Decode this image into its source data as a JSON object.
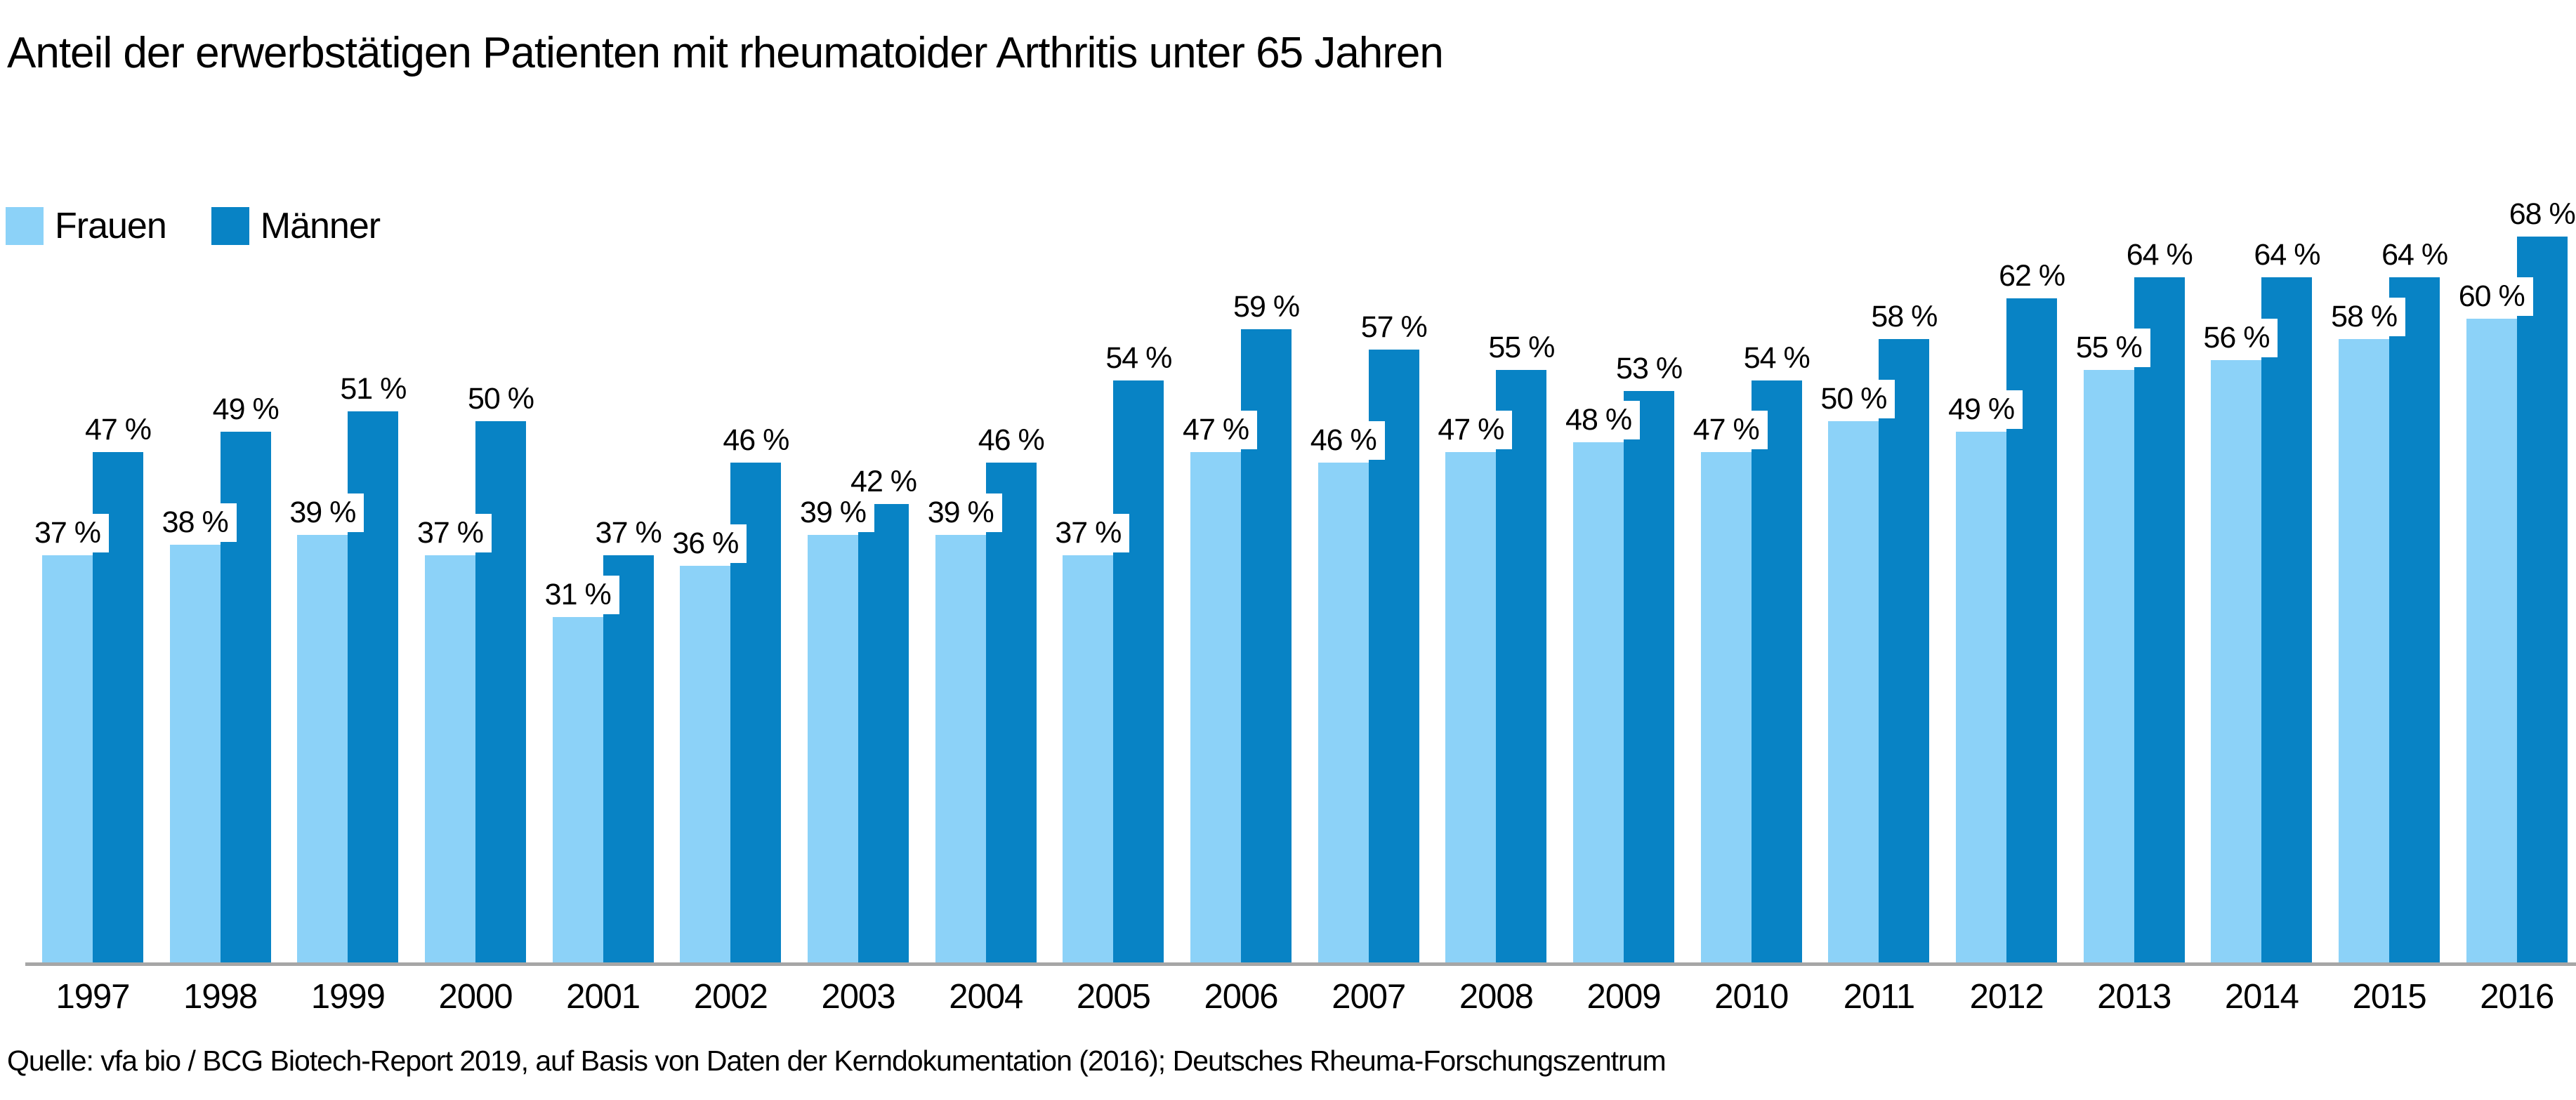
{
  "title": "Anteil der erwerbstätigen Patienten mit rheumatoider Arthritis unter 65 Jahren",
  "source": "Quelle: vfa bio / BCG Biotech-Report 2019, auf Basis von Daten der Kerndokumentation (2016); Deutsches Rheuma-Forschungszentrum",
  "colors": {
    "frauen": "#8CD2F8",
    "maenner": "#0883C5",
    "axis_line": "#A6A6A6",
    "label_background": "#FFFFFF",
    "text": "#000000"
  },
  "legend": {
    "position": "top-left",
    "items": [
      {
        "label": "Frauen",
        "color": "#8CD2F8"
      },
      {
        "label": "Männer",
        "color": "#0883C5"
      }
    ]
  },
  "chart_data": {
    "type": "bar",
    "title": "Anteil der erwerbstätigen Patienten mit rheumatoider Arthritis unter 65 Jahren",
    "xlabel": "",
    "ylabel": "",
    "ylim": [
      0,
      68
    ],
    "grid": false,
    "value_suffix": " %",
    "categories": [
      "1997",
      "1998",
      "1999",
      "2000",
      "2001",
      "2002",
      "2003",
      "2004",
      "2005",
      "2006",
      "2007",
      "2008",
      "2009",
      "2010",
      "2011",
      "2012",
      "2013",
      "2014",
      "2015",
      "2016"
    ],
    "series": [
      {
        "name": "Frauen",
        "color": "#8CD2F8",
        "values": [
          37,
          38,
          39,
          37,
          31,
          36,
          39,
          39,
          37,
          47,
          46,
          47,
          48,
          47,
          50,
          49,
          55,
          56,
          58,
          60
        ]
      },
      {
        "name": "Männer",
        "color": "#0883C5",
        "values": [
          47,
          49,
          51,
          50,
          37,
          46,
          42,
          46,
          54,
          59,
          57,
          55,
          53,
          54,
          58,
          62,
          64,
          64,
          64,
          68
        ]
      }
    ]
  }
}
